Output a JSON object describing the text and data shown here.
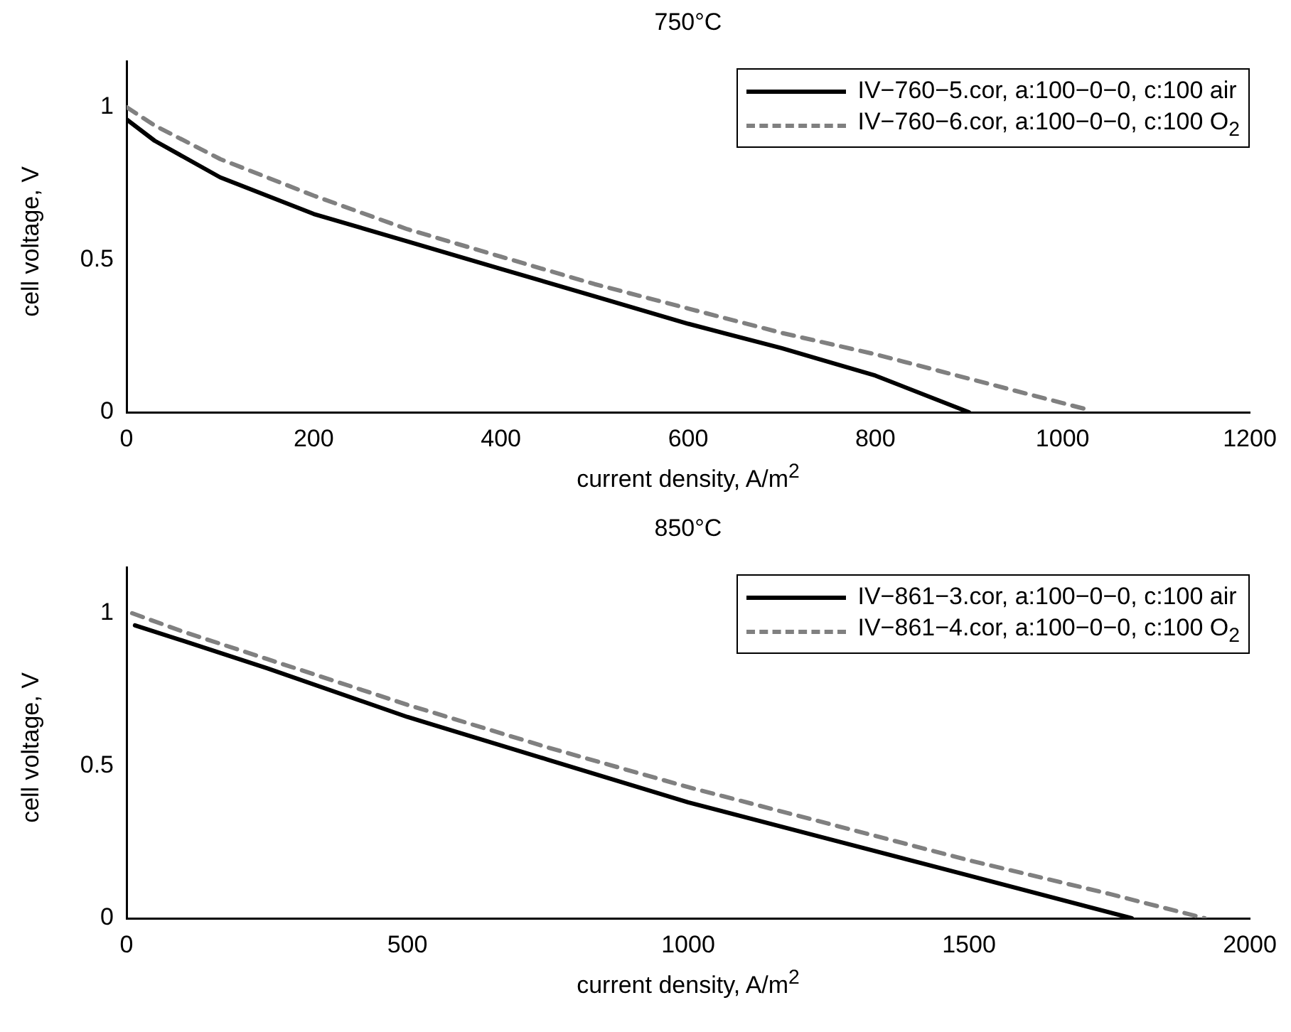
{
  "chart_data": [
    {
      "type": "line",
      "title": "750°C",
      "xlabel": "current density, A/m$^{2}$",
      "ylabel": "cell voltage, V",
      "xlim": [
        0,
        1200
      ],
      "xticks": [
        0,
        200,
        400,
        600,
        800,
        1000,
        1200
      ],
      "ylim": [
        0,
        1.15
      ],
      "yticks": [
        0,
        0.5,
        1
      ],
      "legend": "top right",
      "grid": false,
      "marker": "none",
      "series": [
        {
          "name": "IV−760−5.cor, a:100−0−0, c:100 air",
          "color": "#000000",
          "line_style": "solid",
          "x": [
            0,
            30,
            100,
            200,
            300,
            400,
            500,
            600,
            700,
            800,
            900
          ],
          "values": [
            0.96,
            0.89,
            0.77,
            0.65,
            0.56,
            0.47,
            0.38,
            0.29,
            0.21,
            0.12,
            0
          ]
        },
        {
          "name": "IV−760−6.cor, a:100−0−0, c:100 O$_{2}$",
          "color": "#808080",
          "line_style": "dashed",
          "x": [
            0,
            30,
            100,
            200,
            300,
            400,
            500,
            600,
            700,
            800,
            900,
            1000,
            1025
          ],
          "values": [
            1.0,
            0.94,
            0.83,
            0.71,
            0.6,
            0.51,
            0.42,
            0.34,
            0.26,
            0.19,
            0.11,
            0.03,
            0.01
          ]
        }
      ]
    },
    {
      "type": "line",
      "title": "850°C",
      "xlabel": "current density, A/m$^{2}$",
      "ylabel": "cell voltage, V",
      "xlim": [
        0,
        2000
      ],
      "xticks": [
        0,
        500,
        1000,
        1500,
        2000
      ],
      "ylim": [
        0,
        1.15
      ],
      "yticks": [
        0,
        0.5,
        1
      ],
      "legend": "top right",
      "grid": false,
      "marker": "none",
      "series": [
        {
          "name": "IV−861−3.cor, a:100−0−0, c:100 air",
          "color": "#000000",
          "line_style": "solid",
          "x": [
            15,
            100,
            250,
            500,
            750,
            1000,
            1250,
            1500,
            1790
          ],
          "values": [
            0.96,
            0.91,
            0.82,
            0.66,
            0.52,
            0.38,
            0.26,
            0.14,
            0
          ]
        },
        {
          "name": "IV−861−4.cor, a:100−0−0, c:100 O$_{2}$",
          "color": "#808080",
          "line_style": "dashed",
          "x": [
            10,
            100,
            250,
            500,
            750,
            1000,
            1250,
            1500,
            1750,
            1920
          ],
          "values": [
            1.0,
            0.94,
            0.85,
            0.7,
            0.56,
            0.43,
            0.31,
            0.19,
            0.08,
            0
          ]
        }
      ]
    }
  ]
}
